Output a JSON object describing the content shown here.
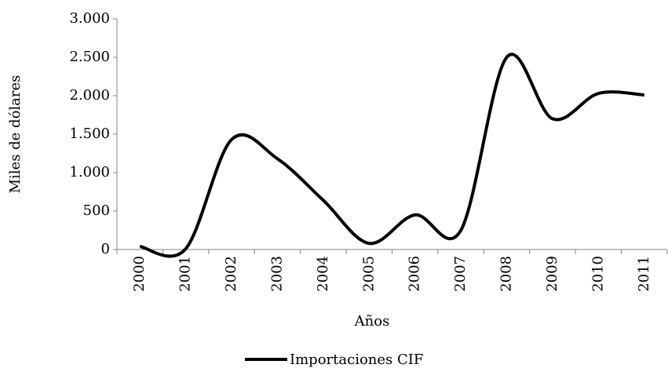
{
  "chart_data": {
    "type": "line",
    "categories": [
      "2000",
      "2001",
      "2002",
      "2003",
      "2004",
      "2005",
      "2006",
      "2007",
      "2008",
      "2009",
      "2010",
      "2011"
    ],
    "series": [
      {
        "name": "Importaciones CIF",
        "color": "#000000",
        "values": [
          40,
          10,
          1430,
          1180,
          640,
          80,
          450,
          250,
          2500,
          1700,
          2030,
          2010
        ]
      }
    ],
    "xlabel": "Años",
    "ylabel": "Miles de dólares",
    "ylim": [
      0,
      3000
    ],
    "yticks": [
      0,
      500,
      {
        "value": 1000,
        "label": "1.000"
      },
      {
        "value": 1500,
        "label": "1.500"
      },
      {
        "value": 2000,
        "label": "2.000"
      },
      {
        "value": 2500,
        "label": "2.500"
      },
      {
        "value": 3000,
        "label": "3.000"
      }
    ],
    "grid": false,
    "smooth": true,
    "legend": "bottom"
  }
}
